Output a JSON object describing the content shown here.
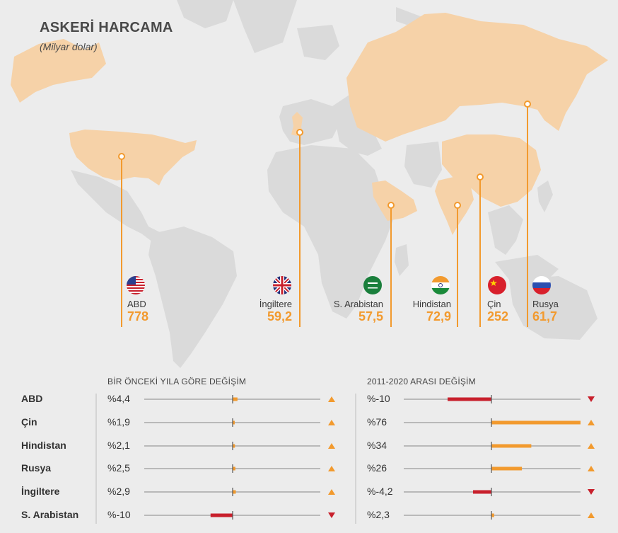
{
  "header": {
    "title": "ASKERİ HARCAMA",
    "subtitle": "(Milyar dolar)"
  },
  "colors": {
    "orange": "#f29a2e",
    "red": "#c8202c",
    "land": "#f6d2a8",
    "land_grey": "#d9d9d9",
    "bg": "#ececec"
  },
  "chart_data": [
    {
      "type": "map",
      "title": "ASKERİ HARCAMA",
      "subtitle": "(Milyar dolar)",
      "countries": [
        {
          "name": "ABD",
          "value": "778",
          "flag": "us-flag-icon"
        },
        {
          "name": "İngiltere",
          "value": "59,2",
          "flag": "uk-flag-icon"
        },
        {
          "name": "S. Arabistan",
          "value": "57,5",
          "flag": "saudi-flag-icon"
        },
        {
          "name": "Hindistan",
          "value": "72,9",
          "flag": "india-flag-icon"
        },
        {
          "name": "Çin",
          "value": "252",
          "flag": "china-flag-icon"
        },
        {
          "name": "Rusya",
          "value": "61,7",
          "flag": "russia-flag-icon"
        }
      ]
    },
    {
      "type": "bar",
      "title": "BİR ÖNCEKİ YILA GÖRE DEĞİŞİM",
      "categories": [
        "ABD",
        "Çin",
        "Hindistan",
        "Rusya",
        "İngiltere",
        "S. Arabistan"
      ],
      "values": [
        4.4,
        1.9,
        2.1,
        2.5,
        2.9,
        -10
      ],
      "labels": [
        "%4,4",
        "%1,9",
        "%2,1",
        "%2,5",
        "%2,9",
        "%-10"
      ],
      "xlim": [
        -40,
        80
      ]
    },
    {
      "type": "bar",
      "title": "2011-2020 ARASI DEĞİŞİM",
      "categories": [
        "ABD",
        "Çin",
        "Hindistan",
        "Rusya",
        "İngiltere",
        "S. Arabistan"
      ],
      "values": [
        -10,
        76,
        34,
        26,
        -4.2,
        2.3
      ],
      "labels": [
        "%-10",
        "%76",
        "%34",
        "%26",
        "%-4,2",
        "%2,3"
      ],
      "xlim": [
        -20,
        76
      ]
    }
  ]
}
